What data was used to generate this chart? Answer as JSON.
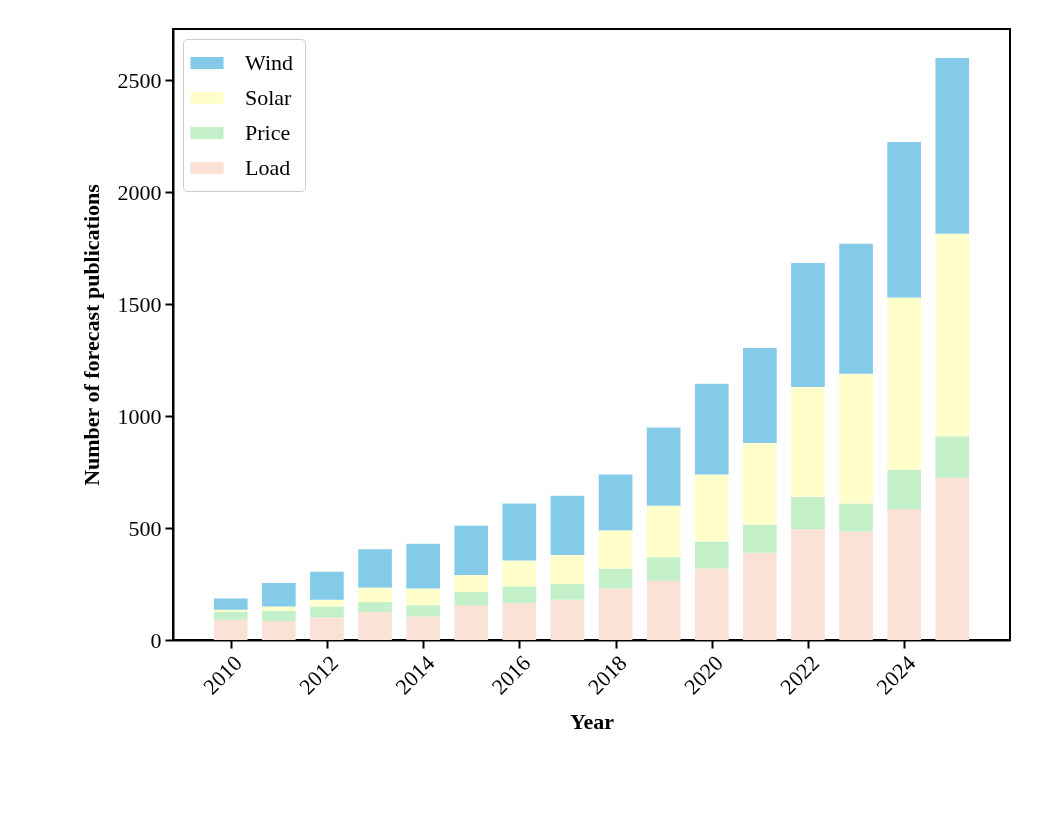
{
  "chart_data": {
    "type": "bar",
    "stacked": true,
    "xlabel": "Year",
    "ylabel": "Number of forecast publications",
    "x": [
      2010,
      2011,
      2012,
      2013,
      2014,
      2015,
      2016,
      2017,
      2018,
      2019,
      2020,
      2021,
      2022,
      2023,
      2024,
      2025
    ],
    "xlim": [
      2008.8,
      2026.2
    ],
    "xticks": [
      2010,
      2012,
      2014,
      2016,
      2018,
      2020,
      2022,
      2024
    ],
    "ylim": [
      0,
      2730
    ],
    "yticks": [
      0,
      500,
      1000,
      1500,
      2000,
      2500
    ],
    "series": [
      {
        "name": "Load",
        "color": "#fae2d6",
        "values": [
          90,
          85,
          100,
          125,
          105,
          155,
          165,
          180,
          230,
          265,
          320,
          390,
          495,
          485,
          585,
          725
        ]
      },
      {
        "name": "Price",
        "color": "#c3f0c8",
        "values": [
          35,
          45,
          50,
          45,
          50,
          60,
          75,
          70,
          90,
          105,
          120,
          125,
          145,
          125,
          175,
          185
        ]
      },
      {
        "name": "Solar",
        "color": "#ffffcc",
        "values": [
          10,
          20,
          30,
          65,
          75,
          75,
          115,
          130,
          170,
          230,
          300,
          365,
          490,
          580,
          770,
          905
        ]
      },
      {
        "name": "Wind",
        "color": "#84cbea",
        "values": [
          50,
          105,
          125,
          170,
          200,
          220,
          255,
          265,
          250,
          350,
          405,
          425,
          555,
          580,
          695,
          785
        ]
      }
    ],
    "legend": "top left",
    "grid": false
  }
}
